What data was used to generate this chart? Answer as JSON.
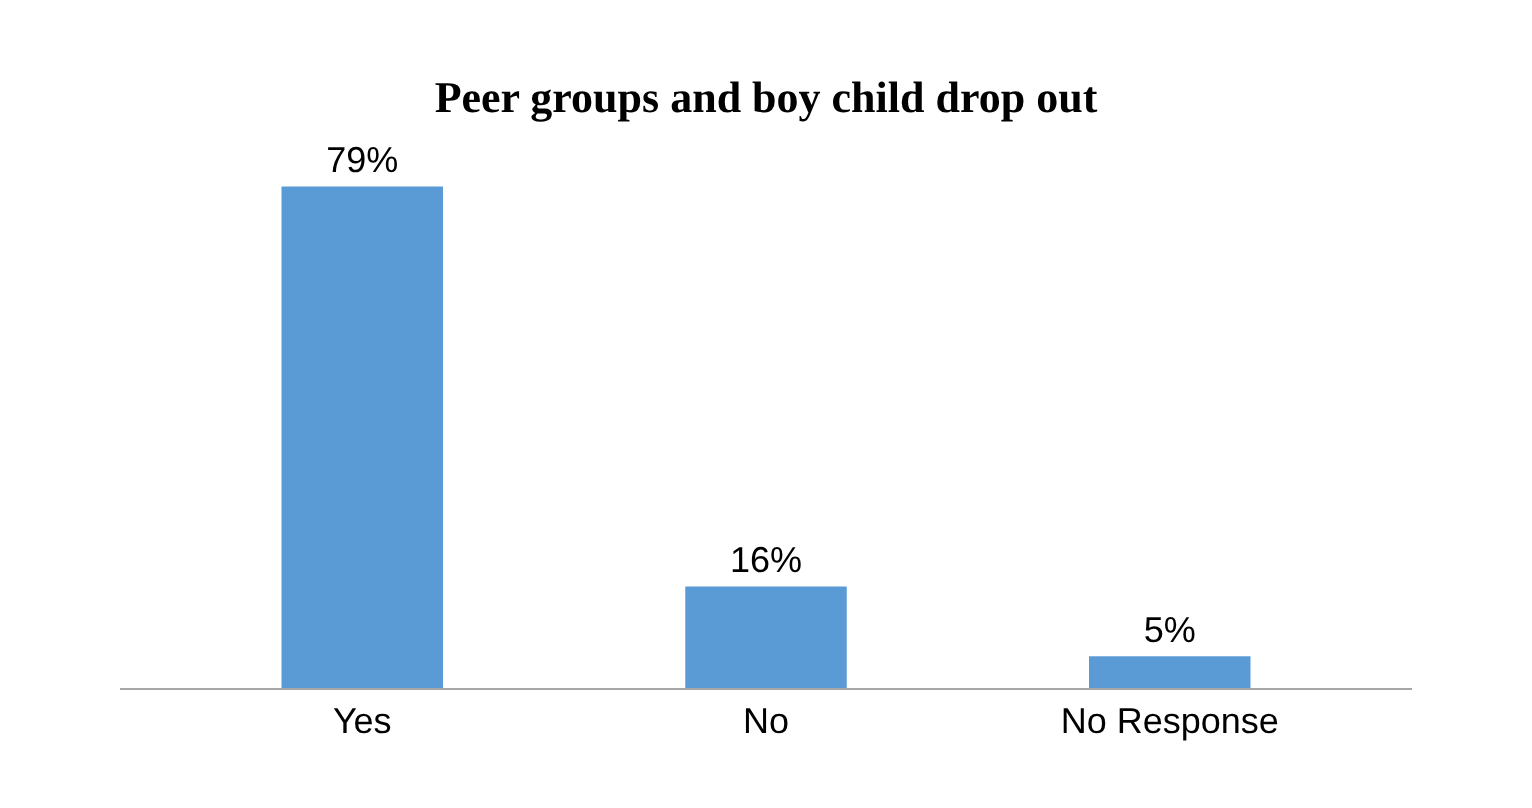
{
  "chart_data": {
    "type": "bar",
    "title": "Peer groups and boy child drop out",
    "categories": [
      "Yes",
      "No",
      "No Response"
    ],
    "values": [
      79,
      16,
      5
    ],
    "value_labels": [
      "79%",
      "16%",
      "5%"
    ],
    "color": "#5b9bd5"
  }
}
